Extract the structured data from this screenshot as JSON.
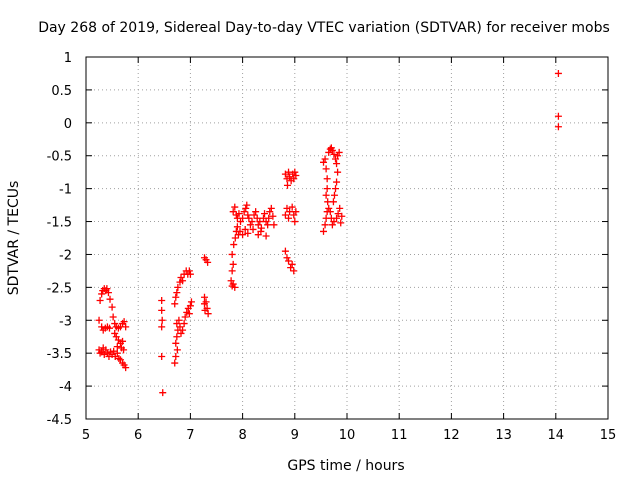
{
  "chart_data": {
    "type": "scatter",
    "title": "Day 268 of 2019, Sidereal Day-to-day VTEC variation (SDTVAR) for receiver mobs",
    "xlabel": "GPS time / hours",
    "ylabel": "SDTVAR / TECUs",
    "xlim": [
      5,
      15
    ],
    "ylim": [
      -4.5,
      1
    ],
    "xticks": [
      5,
      6,
      7,
      8,
      9,
      10,
      11,
      12,
      13,
      14,
      15
    ],
    "xtick_labels": [
      "5",
      "6",
      "7",
      "8",
      "9",
      "10",
      "11",
      "12",
      "13",
      "14",
      "15"
    ],
    "yticks": [
      1,
      0.5,
      0,
      -0.5,
      -1,
      -1.5,
      -2,
      -2.5,
      -3,
      -3.5,
      -4,
      -4.5
    ],
    "ytick_labels": [
      "1",
      "0.5",
      "0",
      "-0.5",
      "-1",
      "-1.5",
      "-2",
      "-2.5",
      "-3",
      "-3.5",
      "-4",
      "-4.5"
    ],
    "grid": true,
    "marker": "+",
    "series": [
      {
        "name": "SDTVAR",
        "color": "#ff0000",
        "points": [
          [
            5.25,
            -3.0
          ],
          [
            5.27,
            -2.7
          ],
          [
            5.3,
            -2.6
          ],
          [
            5.32,
            -2.55
          ],
          [
            5.35,
            -2.52
          ],
          [
            5.38,
            -2.55
          ],
          [
            5.4,
            -2.52
          ],
          [
            5.43,
            -2.58
          ],
          [
            5.46,
            -2.68
          ],
          [
            5.5,
            -2.8
          ],
          [
            5.52,
            -2.95
          ],
          [
            5.55,
            -3.05
          ],
          [
            5.58,
            -3.1
          ],
          [
            5.62,
            -3.12
          ],
          [
            5.66,
            -3.1
          ],
          [
            5.7,
            -3.05
          ],
          [
            5.73,
            -3.02
          ],
          [
            5.76,
            -3.1
          ],
          [
            5.3,
            -3.1
          ],
          [
            5.33,
            -3.15
          ],
          [
            5.37,
            -3.12
          ],
          [
            5.41,
            -3.1
          ],
          [
            5.45,
            -3.12
          ],
          [
            5.25,
            -3.45
          ],
          [
            5.27,
            -3.5
          ],
          [
            5.3,
            -3.48
          ],
          [
            5.33,
            -3.42
          ],
          [
            5.35,
            -3.52
          ],
          [
            5.38,
            -3.45
          ],
          [
            5.41,
            -3.5
          ],
          [
            5.44,
            -3.55
          ],
          [
            5.47,
            -3.48
          ],
          [
            5.5,
            -3.52
          ],
          [
            5.53,
            -3.47
          ],
          [
            5.56,
            -3.55
          ],
          [
            5.6,
            -3.5
          ],
          [
            5.63,
            -3.58
          ],
          [
            5.66,
            -3.6
          ],
          [
            5.7,
            -3.65
          ],
          [
            5.73,
            -3.68
          ],
          [
            5.76,
            -3.72
          ],
          [
            5.72,
            -3.45
          ],
          [
            5.68,
            -3.42
          ],
          [
            5.6,
            -3.4
          ],
          [
            5.55,
            -3.2
          ],
          [
            5.58,
            -3.25
          ],
          [
            5.62,
            -3.3
          ],
          [
            5.66,
            -3.35
          ],
          [
            5.7,
            -3.32
          ],
          [
            6.45,
            -2.7
          ],
          [
            6.45,
            -2.85
          ],
          [
            6.46,
            -3.0
          ],
          [
            6.45,
            -3.1
          ],
          [
            6.45,
            -3.55
          ],
          [
            6.47,
            -4.1
          ],
          [
            6.72,
            -3.55
          ],
          [
            6.7,
            -3.65
          ],
          [
            6.75,
            -3.45
          ],
          [
            6.72,
            -3.35
          ],
          [
            6.74,
            -3.25
          ],
          [
            6.76,
            -3.15
          ],
          [
            6.74,
            -3.05
          ],
          [
            6.78,
            -3.0
          ],
          [
            6.8,
            -3.1
          ],
          [
            6.82,
            -3.2
          ],
          [
            6.85,
            -3.15
          ],
          [
            6.88,
            -3.05
          ],
          [
            6.9,
            -2.95
          ],
          [
            6.93,
            -2.88
          ],
          [
            6.96,
            -2.82
          ],
          [
            6.98,
            -2.9
          ],
          [
            7.0,
            -2.78
          ],
          [
            7.02,
            -2.72
          ],
          [
            6.7,
            -2.75
          ],
          [
            6.72,
            -2.65
          ],
          [
            6.74,
            -2.58
          ],
          [
            6.76,
            -2.5
          ],
          [
            6.8,
            -2.42
          ],
          [
            6.82,
            -2.35
          ],
          [
            6.85,
            -2.4
          ],
          [
            6.88,
            -2.3
          ],
          [
            6.92,
            -2.25
          ],
          [
            6.95,
            -2.3
          ],
          [
            6.98,
            -2.25
          ],
          [
            7.0,
            -2.3
          ],
          [
            7.27,
            -2.05
          ],
          [
            7.3,
            -2.08
          ],
          [
            7.33,
            -2.12
          ],
          [
            7.27,
            -2.65
          ],
          [
            7.27,
            -2.75
          ],
          [
            7.28,
            -2.85
          ],
          [
            7.3,
            -2.72
          ],
          [
            7.32,
            -2.82
          ],
          [
            7.34,
            -2.9
          ],
          [
            7.78,
            -2.4
          ],
          [
            7.8,
            -2.48
          ],
          [
            7.82,
            -2.45
          ],
          [
            7.85,
            -2.5
          ],
          [
            7.8,
            -2.25
          ],
          [
            7.82,
            -2.15
          ],
          [
            7.8,
            -2.0
          ],
          [
            7.83,
            -1.85
          ],
          [
            7.86,
            -1.75
          ],
          [
            7.88,
            -1.65
          ],
          [
            7.9,
            -1.58
          ],
          [
            7.92,
            -1.7
          ],
          [
            7.82,
            -1.35
          ],
          [
            7.85,
            -1.28
          ],
          [
            7.88,
            -1.4
          ],
          [
            7.9,
            -1.45
          ],
          [
            7.93,
            -1.38
          ],
          [
            7.96,
            -1.5
          ],
          [
            8.0,
            -1.45
          ],
          [
            8.03,
            -1.35
          ],
          [
            8.06,
            -1.3
          ],
          [
            8.08,
            -1.25
          ],
          [
            8.1,
            -1.4
          ],
          [
            8.12,
            -1.45
          ],
          [
            8.15,
            -1.55
          ],
          [
            8.18,
            -1.5
          ],
          [
            8.2,
            -1.62
          ],
          [
            8.22,
            -1.4
          ],
          [
            8.25,
            -1.35
          ],
          [
            8.28,
            -1.45
          ],
          [
            8.3,
            -1.55
          ],
          [
            8.33,
            -1.5
          ],
          [
            8.36,
            -1.6
          ],
          [
            8.4,
            -1.45
          ],
          [
            8.42,
            -1.38
          ],
          [
            8.45,
            -1.5
          ],
          [
            8.48,
            -1.55
          ],
          [
            8.5,
            -1.45
          ],
          [
            8.52,
            -1.35
          ],
          [
            8.55,
            -1.3
          ],
          [
            8.58,
            -1.42
          ],
          [
            8.6,
            -1.55
          ],
          [
            7.95,
            -1.65
          ],
          [
            8.0,
            -1.7
          ],
          [
            8.05,
            -1.62
          ],
          [
            8.1,
            -1.68
          ],
          [
            8.3,
            -1.7
          ],
          [
            8.35,
            -1.65
          ],
          [
            8.45,
            -1.72
          ],
          [
            8.82,
            -1.95
          ],
          [
            8.85,
            -2.05
          ],
          [
            8.88,
            -2.1
          ],
          [
            8.92,
            -2.2
          ],
          [
            8.95,
            -2.15
          ],
          [
            8.98,
            -2.25
          ],
          [
            8.82,
            -1.4
          ],
          [
            8.85,
            -1.3
          ],
          [
            8.88,
            -1.45
          ],
          [
            8.9,
            -1.35
          ],
          [
            8.95,
            -1.28
          ],
          [
            8.98,
            -1.4
          ],
          [
            9.0,
            -1.5
          ],
          [
            9.02,
            -1.35
          ],
          [
            8.82,
            -0.78
          ],
          [
            8.85,
            -0.85
          ],
          [
            8.88,
            -0.75
          ],
          [
            8.9,
            -0.82
          ],
          [
            8.93,
            -0.88
          ],
          [
            8.96,
            -0.78
          ],
          [
            8.98,
            -0.85
          ],
          [
            9.0,
            -0.75
          ],
          [
            9.02,
            -0.8
          ],
          [
            8.86,
            -0.95
          ],
          [
            9.55,
            -0.6
          ],
          [
            9.58,
            -0.55
          ],
          [
            9.6,
            -0.7
          ],
          [
            9.62,
            -0.85
          ],
          [
            9.62,
            -1.0
          ],
          [
            9.6,
            -1.1
          ],
          [
            9.63,
            -1.2
          ],
          [
            9.65,
            -1.3
          ],
          [
            9.68,
            -1.35
          ],
          [
            9.7,
            -1.45
          ],
          [
            9.72,
            -1.55
          ],
          [
            9.55,
            -1.65
          ],
          [
            9.58,
            -1.55
          ],
          [
            9.6,
            -1.45
          ],
          [
            9.62,
            -1.35
          ],
          [
            9.65,
            -0.45
          ],
          [
            9.68,
            -0.4
          ],
          [
            9.7,
            -0.38
          ],
          [
            9.72,
            -0.42
          ],
          [
            9.75,
            -0.48
          ],
          [
            9.78,
            -0.55
          ],
          [
            9.8,
            -0.62
          ],
          [
            9.82,
            -0.5
          ],
          [
            9.85,
            -0.45
          ],
          [
            9.82,
            -0.75
          ],
          [
            9.8,
            -0.9
          ],
          [
            9.78,
            -1.0
          ],
          [
            9.76,
            -1.1
          ],
          [
            9.74,
            -1.2
          ],
          [
            9.75,
            -1.5
          ],
          [
            9.8,
            -1.45
          ],
          [
            9.83,
            -1.38
          ],
          [
            9.86,
            -1.3
          ],
          [
            9.88,
            -1.52
          ],
          [
            9.9,
            -1.42
          ],
          [
            14.05,
            0.75
          ],
          [
            14.05,
            0.1
          ],
          [
            14.05,
            -0.06
          ]
        ]
      }
    ]
  }
}
